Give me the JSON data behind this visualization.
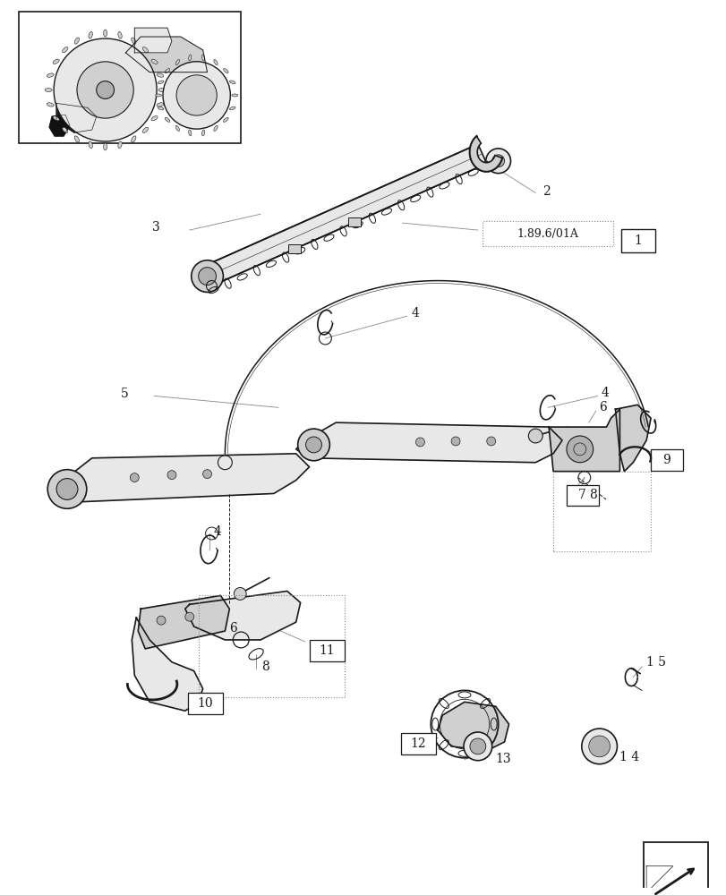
{
  "bg": "#ffffff",
  "lc": "#1a1a1a",
  "gray1": "#e8e8e8",
  "gray2": "#d0d0d0",
  "gray3": "#b0b0b0",
  "callout_color": "#888888",
  "fig_w": 8.12,
  "fig_h": 10.0,
  "dpi": 100
}
